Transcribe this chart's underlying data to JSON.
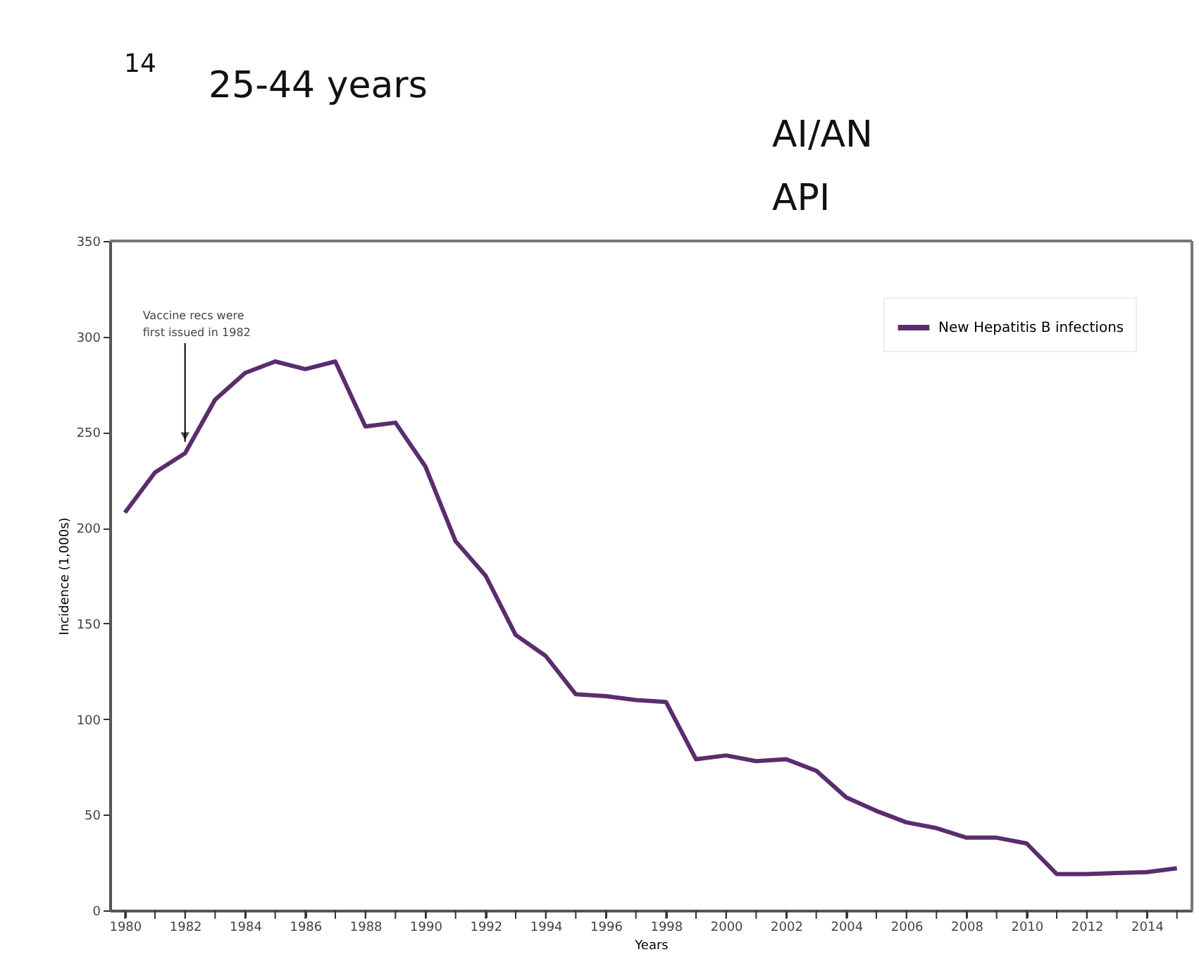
{
  "chart_data": {
    "type": "line",
    "xlabel": "Years",
    "ylabel": "Incidence (1,000s)",
    "x": [
      1980,
      1981,
      1982,
      1983,
      1984,
      1985,
      1986,
      1987,
      1988,
      1989,
      1990,
      1991,
      1992,
      1993,
      1994,
      1995,
      1996,
      1997,
      1998,
      1999,
      2000,
      2001,
      2002,
      2003,
      2004,
      2005,
      2006,
      2007,
      2008,
      2009,
      2010,
      2011,
      2012,
      2013,
      2014,
      2015
    ],
    "series": [
      {
        "name": "New Hepatitis B infections",
        "color": "#5a2d6e",
        "values": [
          208,
          229,
          239,
          267,
          281,
          287,
          283,
          287,
          253,
          255,
          232,
          193,
          175,
          144,
          133,
          113,
          112,
          110,
          109,
          79,
          81,
          78,
          79,
          73,
          59,
          52,
          46,
          43,
          38,
          38,
          35,
          19,
          19,
          19.5,
          20,
          22
        ]
      }
    ],
    "xlim": [
      1979.5,
      2015.5
    ],
    "xticks": [
      {
        "value": 1980,
        "label": "1980"
      },
      {
        "value": 1981,
        "label": null
      },
      {
        "value": 1982,
        "label": "1982"
      },
      {
        "value": 1983,
        "label": null
      },
      {
        "value": 1984,
        "label": "1984"
      },
      {
        "value": 1985,
        "label": null
      },
      {
        "value": 1986,
        "label": "1986"
      },
      {
        "value": 1987,
        "label": null
      },
      {
        "value": 1988,
        "label": "1988"
      },
      {
        "value": 1989,
        "label": null
      },
      {
        "value": 1990,
        "label": "1990"
      },
      {
        "value": 1991,
        "label": null
      },
      {
        "value": 1992,
        "label": "1992"
      },
      {
        "value": 1993,
        "label": null
      },
      {
        "value": 1994,
        "label": "1994"
      },
      {
        "value": 1995,
        "label": null
      },
      {
        "value": 1996,
        "label": "1996"
      },
      {
        "value": 1997,
        "label": null
      },
      {
        "value": 1998,
        "label": "1998"
      },
      {
        "value": 1999,
        "label": null
      },
      {
        "value": 2000,
        "label": "2000"
      },
      {
        "value": 2001,
        "label": null
      },
      {
        "value": 2002,
        "label": "2002"
      },
      {
        "value": 2003,
        "label": null
      },
      {
        "value": 2004,
        "label": "2004"
      },
      {
        "value": 2005,
        "label": null
      },
      {
        "value": 2006,
        "label": "2006"
      },
      {
        "value": 2007,
        "label": null
      },
      {
        "value": 2008,
        "label": "2008"
      },
      {
        "value": 2009,
        "label": null
      },
      {
        "value": 2010,
        "label": "2010"
      },
      {
        "value": 2011,
        "label": null
      },
      {
        "value": 2012,
        "label": "2012"
      },
      {
        "value": 2013,
        "label": null
      },
      {
        "value": 2014,
        "label": "2014"
      },
      {
        "value": 2015,
        "label": null
      }
    ],
    "ylim": [
      0,
      350
    ],
    "yticks": [
      0,
      50,
      100,
      150,
      200,
      250,
      300,
      350
    ],
    "annotations": [
      {
        "text": "Vaccine recs were\nfirst issued in 1982",
        "x": 1982,
        "y": 245
      },
      "14",
      "25-44 years",
      "AI/AN",
      "API"
    ],
    "grid": false,
    "legend": "top right",
    "marker": "none",
    "line_style": "solid"
  }
}
